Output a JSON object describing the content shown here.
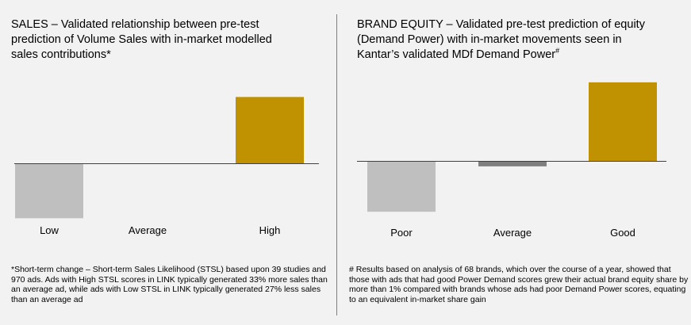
{
  "panels": {
    "sales": {
      "title": "SALES – Validated relationship between pre-test\nprediction of Volume Sales with in-market modelled\nsales contributions",
      "title_marker": "*",
      "footnote": "*Short-term change – Short-term Sales Likelihood (STSL) based upon 39 studies and 970 ads.   Ads with High STSL scores in LINK typically generated 33% more sales than an average ad, while ads with Low STSL in LINK typically generated 27% less sales than an average ad"
    },
    "brand_equity": {
      "title": "BRAND EQUITY –  Validated pre-test prediction of equity\n(Demand Power) with in-market movements seen in\nKantar’s validated MDf Demand Power",
      "title_marker": "#",
      "footnote": "# Results based on analysis of 68 brands, which over the course of a year, showed that those with ads that had good Power Demand scores grew their actual brand equity share by more than 1% compared with brands whose ads had poor Demand Power scores, equating to an equivalent in-market share gain"
    }
  },
  "chart_data": [
    {
      "type": "bar",
      "categories": [
        "Low",
        "Average",
        "High"
      ],
      "values": [
        -27,
        0,
        33
      ],
      "colors": [
        "#bfbfbf",
        "#7f7f7f",
        "#c09100"
      ],
      "ylim": [
        -33,
        33
      ],
      "axis": "zero baseline only",
      "grid": false
    },
    {
      "type": "bar",
      "categories": [
        "Poor",
        "Average",
        "Good"
      ],
      "values": [
        -30,
        -3,
        47
      ],
      "colors": [
        "#bfbfbf",
        "#7f7f7f",
        "#c09100"
      ],
      "ylim": [
        -30,
        47
      ],
      "axis": "zero baseline only",
      "grid": false
    }
  ]
}
